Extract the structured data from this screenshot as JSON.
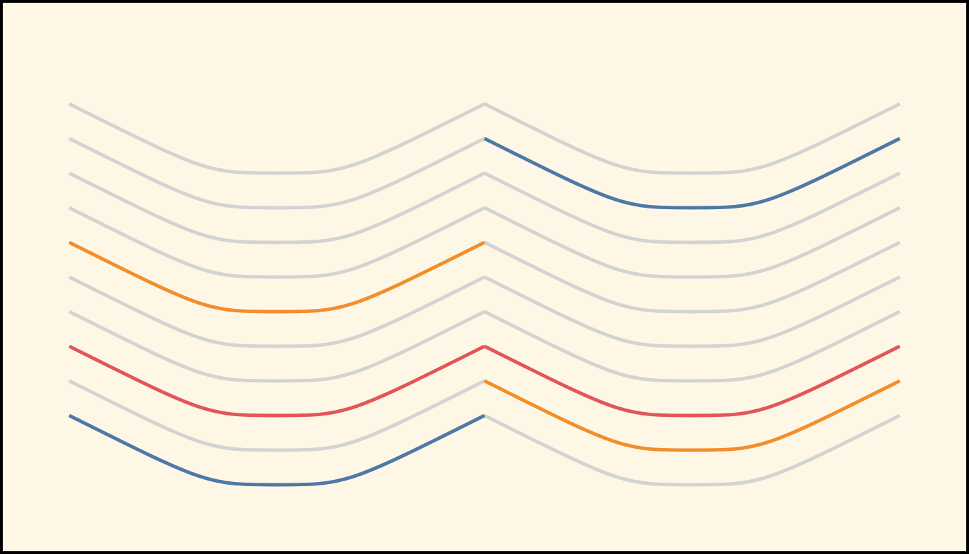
{
  "palette": {
    "background": "#fff7e6",
    "border": "#000000",
    "muted": "#d3d3d3",
    "blue": "#4e79a7",
    "orange": "#f28e2b",
    "red": "#e15759"
  },
  "wave_rows": 10,
  "halves": [
    {
      "name": "left",
      "highlighted_rows": [
        {
          "row": 4,
          "color": "orange"
        },
        {
          "row": 7,
          "color": "red"
        },
        {
          "row": 9,
          "color": "blue"
        }
      ]
    },
    {
      "name": "right",
      "highlighted_rows": [
        {
          "row": 1,
          "color": "blue"
        },
        {
          "row": 7,
          "color": "red"
        },
        {
          "row": 8,
          "color": "orange"
        }
      ]
    }
  ]
}
